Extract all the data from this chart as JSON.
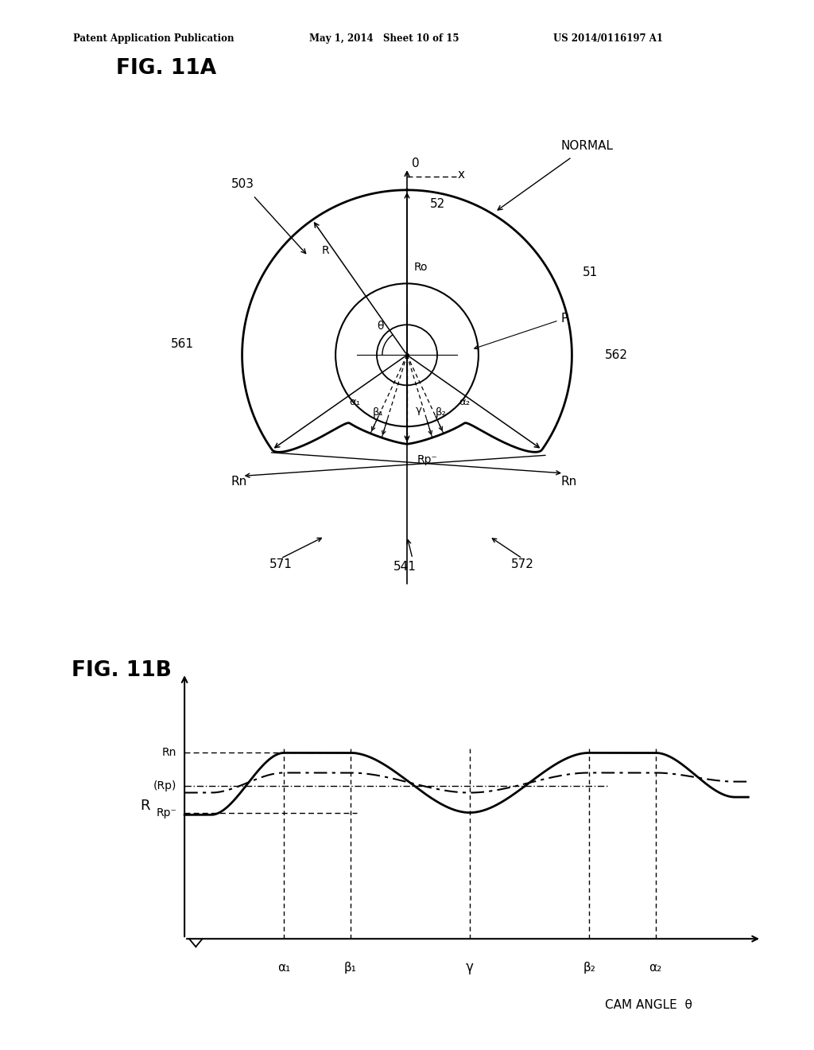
{
  "header_left": "Patent Application Publication",
  "header_mid": "May 1, 2014   Sheet 10 of 15",
  "header_right": "US 2014/0116197 A1",
  "fig11a_label": "FIG. 11A",
  "fig11b_label": "FIG. 11B",
  "bg_color": "#ffffff",
  "line_color": "#000000",
  "cam_angle_label": "CAM ANGLE  θ",
  "R_label": "R",
  "Rn_label": "Rn",
  "Rp_label": "Rp⁻",
  "Rp_paren_label": "(Rp)",
  "alpha1_label": "α₁",
  "alpha2_label": "α₂",
  "beta1_label": "β₁",
  "beta2_label": "β₂",
  "gamma_label": "γ"
}
